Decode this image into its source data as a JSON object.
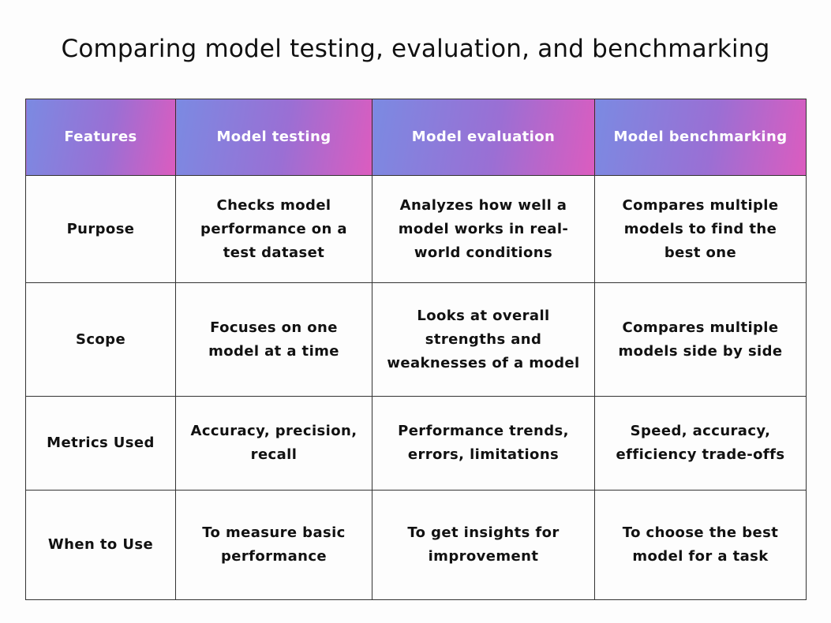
{
  "header": {
    "title": "Comparing model testing, evaluation, and benchmarking"
  },
  "table": {
    "columns": [
      "Features",
      "Model testing",
      "Model evaluation",
      "Model benchmarking"
    ],
    "rows": [
      [
        "Purpose",
        "Checks model performance on a test dataset",
        "Analyzes how well a model works in real-world conditions",
        "Compares multiple models to find the best one"
      ],
      [
        "Scope",
        "Focuses on one model at a time",
        "Looks at overall strengths and weaknesses of a model",
        "Compares multiple models side by side"
      ],
      [
        "Metrics Used",
        "Accuracy, precision, recall",
        "Performance trends, errors, limitations",
        "Speed, accuracy, efficiency trade-offs"
      ],
      [
        "When to Use",
        "To measure basic performance",
        "To get insights for improvement",
        "To choose the best model for a task"
      ]
    ]
  }
}
